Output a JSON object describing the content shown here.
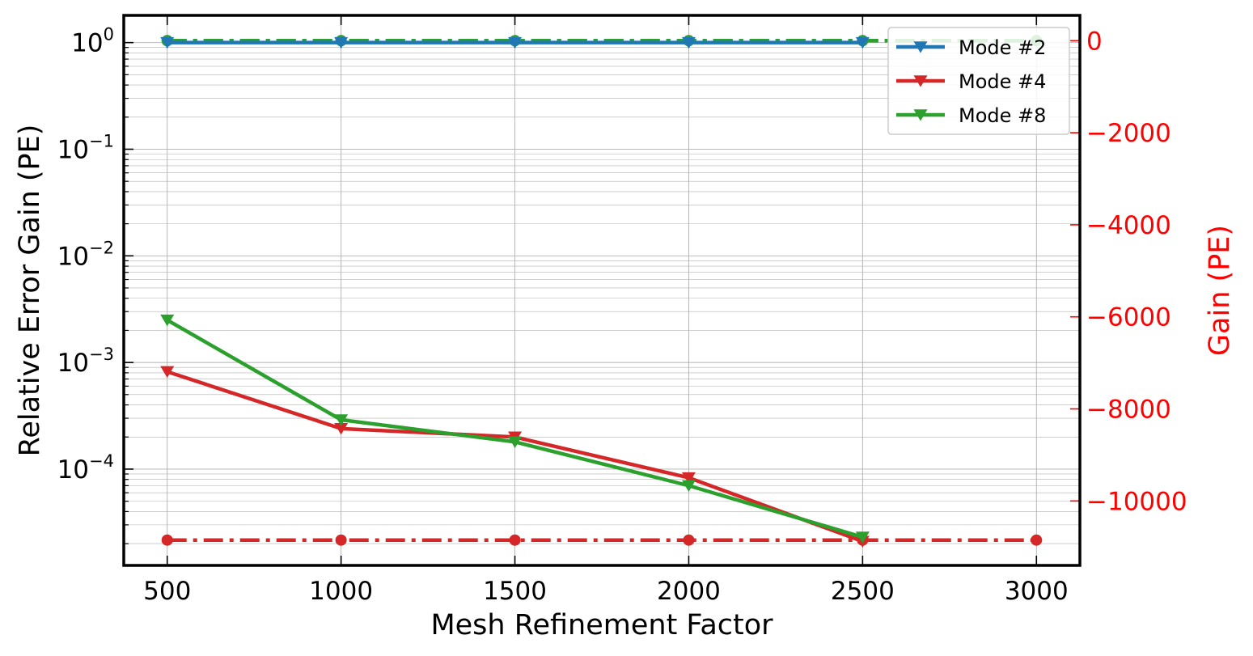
{
  "chart_data": {
    "type": "line",
    "xlabel": "Mesh Refinement Factor",
    "ylabel_left": "Relative Error Gain (PE)",
    "ylabel_right": "Gain (PE)",
    "right_axis_color": "#ff0000",
    "x_ticks": [
      500,
      1000,
      1500,
      2000,
      2500,
      3000
    ],
    "x_tick_labels": [
      "500",
      "1000",
      "1500",
      "2000",
      "2500",
      "3000"
    ],
    "xlim": [
      375,
      3125
    ],
    "left_scale": "log",
    "left_ylim": [
      1.25e-05,
      1.8
    ],
    "left_y_ticks": [
      1,
      0.1,
      0.01,
      0.001,
      0.0001
    ],
    "left_y_tick_bases": [
      "10",
      "10",
      "10",
      "10",
      "10"
    ],
    "left_y_tick_exponents": [
      "0",
      "−1",
      "−2",
      "−3",
      "−4"
    ],
    "right_ylim": [
      -11400,
      550
    ],
    "right_y_ticks": [
      0,
      -2000,
      -4000,
      -6000,
      -8000,
      -10000
    ],
    "right_y_tick_labels": [
      "0",
      "−2000",
      "−4000",
      "−6000",
      "−8000",
      "−10000"
    ],
    "grid": true,
    "legend_position": "top-right",
    "series": [
      {
        "name": "Mode #2",
        "axis": "left",
        "color": "#1f77b4",
        "style": "solid",
        "marker": "triangle-down",
        "x": [
          500,
          1000,
          1500,
          2000,
          2500
        ],
        "values": [
          1.0,
          1.0,
          1.0,
          1.0,
          1.0
        ]
      },
      {
        "name": "Mode #4",
        "axis": "left",
        "color": "#d62728",
        "style": "solid",
        "marker": "triangle-down",
        "x": [
          500,
          1000,
          1500,
          2000,
          2500
        ],
        "values": [
          0.00082,
          0.00024,
          0.0002,
          8.3e-05,
          2.1e-05
        ]
      },
      {
        "name": "Mode #8",
        "axis": "left",
        "color": "#2ca02c",
        "style": "solid",
        "marker": "triangle-down",
        "x": [
          500,
          1000,
          1500,
          2000,
          2500
        ],
        "values": [
          0.0025,
          0.00029,
          0.00018,
          7e-05,
          2.3e-05
        ]
      },
      {
        "axis": "right",
        "color": "#1f77b4",
        "style": "dashdot",
        "marker": "circle",
        "x": [
          500,
          1000,
          1500,
          2000,
          2500,
          3000
        ],
        "values": [
          0,
          0,
          0,
          0,
          0,
          0
        ]
      },
      {
        "axis": "right",
        "color": "#2ca02c",
        "style": "dashdot",
        "marker": "circle",
        "x": [
          500,
          1000,
          1500,
          2000,
          2500,
          3000
        ],
        "values": [
          0,
          0,
          0,
          0,
          0,
          0
        ]
      },
      {
        "axis": "right",
        "color": "#d62728",
        "style": "dashdot",
        "marker": "circle",
        "x": [
          500,
          1000,
          1500,
          2000,
          2500,
          3000
        ],
        "values": [
          -10850,
          -10850,
          -10850,
          -10850,
          -10850,
          -10850
        ]
      }
    ]
  }
}
